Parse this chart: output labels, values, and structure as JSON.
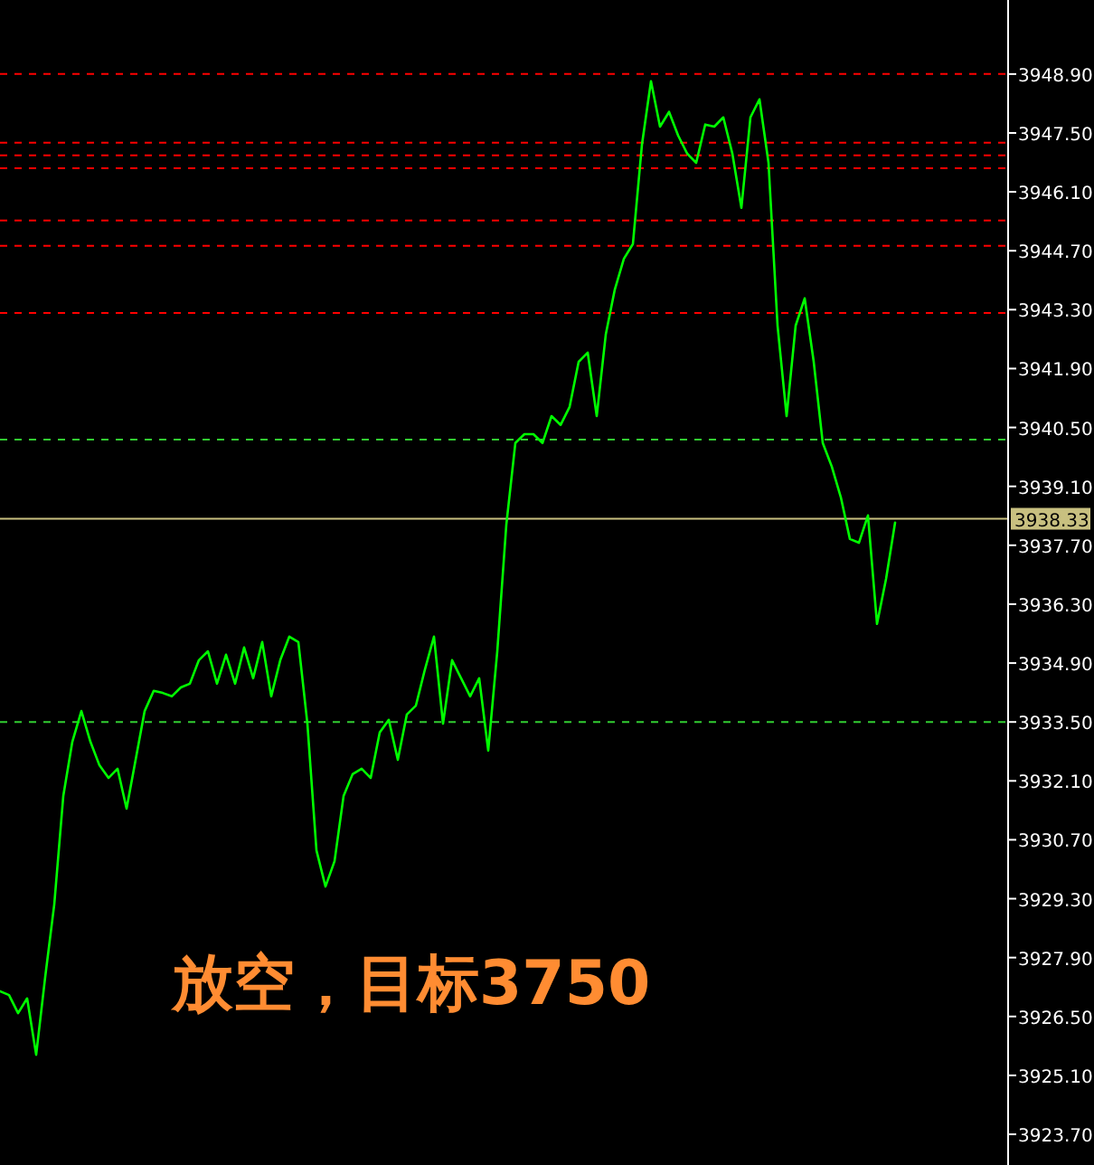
{
  "chart_data": {
    "type": "line",
    "color": "#00ff00",
    "line_style": "solid",
    "marker": "none",
    "tick_labels": "y",
    "grid": false,
    "categories": [
      null,
      null,
      null,
      null,
      null,
      null,
      null,
      null,
      null,
      null,
      null,
      null,
      null,
      null,
      null,
      null,
      null,
      null,
      null,
      null,
      null,
      null,
      null,
      null,
      null,
      null,
      null,
      null,
      null,
      null,
      null,
      null,
      null,
      null,
      null,
      null,
      null,
      null,
      null,
      null,
      null,
      null,
      null,
      null,
      null,
      null,
      null,
      null,
      null,
      null,
      null,
      null,
      null,
      null,
      null,
      null,
      null,
      null,
      null,
      null,
      null,
      null,
      null,
      null,
      null,
      null,
      null,
      null,
      null,
      null,
      null,
      null,
      null,
      null,
      null,
      null,
      null,
      null,
      null,
      null,
      null,
      null,
      null,
      null,
      null,
      null,
      null,
      null,
      null,
      null,
      null,
      null,
      null,
      null,
      null,
      null,
      null,
      null,
      null,
      null
    ],
    "values": [
      3927.1,
      3927.01,
      3926.58,
      3926.93,
      3925.59,
      3927.44,
      3929.16,
      3931.74,
      3933.03,
      3933.76,
      3933.03,
      3932.47,
      3932.17,
      3932.39,
      3931.44,
      3932.6,
      3933.76,
      3934.24,
      3934.19,
      3934.11,
      3934.32,
      3934.41,
      3934.97,
      3935.18,
      3934.41,
      3935.1,
      3934.41,
      3935.27,
      3934.54,
      3935.4,
      3934.11,
      3934.97,
      3935.53,
      3935.4,
      3933.46,
      3930.45,
      3929.59,
      3930.19,
      3931.74,
      3932.26,
      3932.39,
      3932.17,
      3933.25,
      3933.55,
      3932.6,
      3933.68,
      3933.89,
      3934.75,
      3935.53,
      3933.46,
      3934.97,
      3934.54,
      3934.11,
      3934.54,
      3932.82,
      3935.18,
      3938.19,
      3940.13,
      3940.34,
      3940.34,
      3940.13,
      3940.77,
      3940.56,
      3940.99,
      3942.06,
      3942.28,
      3940.77,
      3942.71,
      3943.78,
      3944.51,
      3944.86,
      3947.22,
      3948.73,
      3947.65,
      3948.0,
      3947.44,
      3947.01,
      3946.79,
      3947.7,
      3947.65,
      3947.87,
      3947.01,
      3945.72,
      3947.87,
      3948.3,
      3946.79,
      3942.92,
      3940.77,
      3942.92,
      3943.57,
      3942.06,
      3940.13,
      3939.57,
      3938.84,
      3937.85,
      3937.76,
      3938.41,
      3935.83,
      3936.9,
      3938.24
    ],
    "ylim": [
      3922.97,
      3950.66
    ],
    "yticks": [
      {
        "value": 3923.7,
        "label": "3923.70"
      },
      {
        "value": 3925.1,
        "label": "3925.10"
      },
      {
        "value": 3926.5,
        "label": "3926.50"
      },
      {
        "value": 3927.9,
        "label": "3927.90"
      },
      {
        "value": 3929.3,
        "label": "3929.30"
      },
      {
        "value": 3930.7,
        "label": "3930.70"
      },
      {
        "value": 3932.1,
        "label": "3932.10"
      },
      {
        "value": 3933.5,
        "label": "3933.50"
      },
      {
        "value": 3934.9,
        "label": "3934.90"
      },
      {
        "value": 3936.3,
        "label": "3936.30"
      },
      {
        "value": 3937.7,
        "label": "3937.70"
      },
      {
        "value": 3939.1,
        "label": "3939.10"
      },
      {
        "value": 3940.5,
        "label": "3940.50"
      },
      {
        "value": 3941.9,
        "label": "3941.90"
      },
      {
        "value": 3943.3,
        "label": "3943.30"
      },
      {
        "value": 3944.7,
        "label": "3944.70"
      },
      {
        "value": 3946.1,
        "label": "3946.10"
      },
      {
        "value": 3947.5,
        "label": "3947.50"
      },
      {
        "value": 3948.9,
        "label": "3948.90"
      }
    ],
    "ref_lines": [
      {
        "axis": "y",
        "value": 3948.9,
        "color": "#ff0000",
        "line_style": "dashed"
      },
      {
        "axis": "y",
        "value": 3947.27,
        "color": "#ff0000",
        "line_style": "dashed"
      },
      {
        "axis": "y",
        "value": 3946.97,
        "color": "#ff0000",
        "line_style": "dashed"
      },
      {
        "axis": "y",
        "value": 3946.66,
        "color": "#ff0000",
        "line_style": "dashed"
      },
      {
        "axis": "y",
        "value": 3945.42,
        "color": "#ff0000",
        "line_style": "dashed"
      },
      {
        "axis": "y",
        "value": 3944.82,
        "color": "#ff0000",
        "line_style": "dashed"
      },
      {
        "axis": "y",
        "value": 3943.22,
        "color": "#ff0000",
        "line_style": "dashed"
      },
      {
        "axis": "y",
        "value": 3940.21,
        "color": "#32cd32",
        "line_style": "dashed"
      },
      {
        "axis": "y",
        "value": 3933.5,
        "color": "#32cd32",
        "line_style": "dashed"
      },
      {
        "axis": "y",
        "value": 3938.33,
        "label": "3938.33",
        "color": "#c8c080",
        "line_style": "solid"
      }
    ],
    "annotations": [
      "放空，目标3750"
    ]
  }
}
